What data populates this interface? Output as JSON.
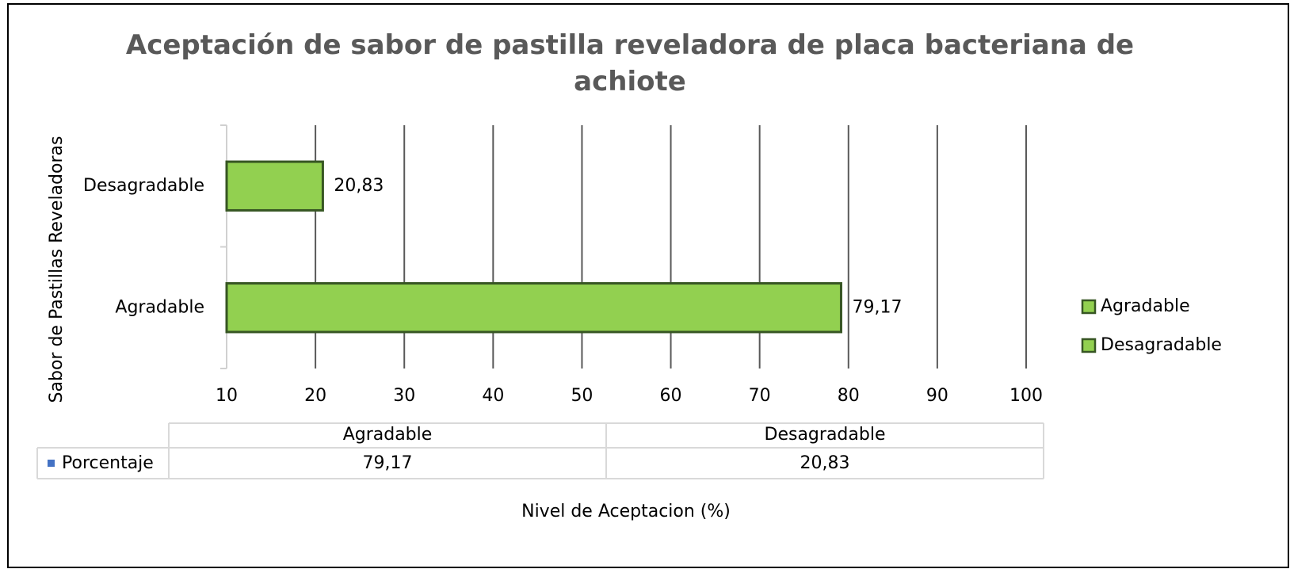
{
  "chart_data": {
    "type": "bar",
    "orientation": "horizontal",
    "title": "Aceptación de sabor de pastilla reveladora de placa bacteriana de achiote",
    "x_label": "Nivel de Aceptacion (%)",
    "y_label": "Sabor de Pastillas Reveladoras",
    "categories": [
      "Agradable",
      "Desagradable"
    ],
    "series": [
      {
        "name": "Porcentaje",
        "color": "#92d050",
        "edge_color": "#375623",
        "table_marker_color": "#4472c4",
        "values": [
          79.17,
          20.83
        ],
        "value_labels": [
          "79,17",
          "20,83"
        ]
      }
    ],
    "xlim": [
      10,
      100
    ],
    "xticks": [
      10,
      20,
      30,
      40,
      50,
      60,
      70,
      80,
      90,
      100
    ],
    "grid": true,
    "legend": "right",
    "data_table": true
  }
}
